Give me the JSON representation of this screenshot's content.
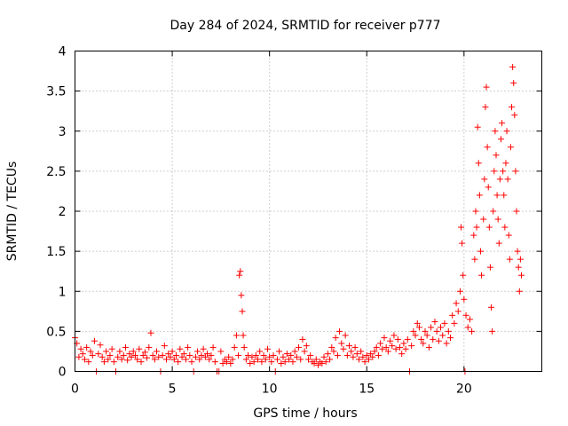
{
  "chart_data": {
    "type": "scatter",
    "title": "Day 284 of 2024, SRMTID for receiver p777",
    "xlabel": "GPS time / hours",
    "ylabel": "SRMTID / TECUs",
    "xlim": [
      0,
      24
    ],
    "ylim": [
      0,
      4
    ],
    "xticks": [
      0,
      5,
      10,
      15,
      20
    ],
    "yticks": [
      0,
      0.5,
      1,
      1.5,
      2,
      2.5,
      3,
      3.5,
      4
    ],
    "xtick_labels": [
      "0",
      "5",
      "10",
      "15",
      "20"
    ],
    "ytick_labels": [
      "0",
      "0.5",
      "1",
      "1.5",
      "2",
      "2.5",
      "3",
      "3.5",
      "4"
    ],
    "grid": true,
    "marker": "+",
    "color": "#ff0000",
    "series": [
      {
        "name": "p777",
        "points": [
          [
            0.0,
            0.42
          ],
          [
            0.1,
            0.35
          ],
          [
            0.2,
            0.18
          ],
          [
            0.3,
            0.28
          ],
          [
            0.4,
            0.22
          ],
          [
            0.5,
            0.15
          ],
          [
            0.6,
            0.3
          ],
          [
            0.7,
            0.12
          ],
          [
            0.8,
            0.25
          ],
          [
            0.9,
            0.2
          ],
          [
            1.0,
            0.38
          ],
          [
            1.1,
            0.0
          ],
          [
            1.2,
            0.22
          ],
          [
            1.3,
            0.33
          ],
          [
            1.4,
            0.18
          ],
          [
            1.5,
            0.12
          ],
          [
            1.6,
            0.25
          ],
          [
            1.7,
            0.15
          ],
          [
            1.8,
            0.2
          ],
          [
            1.9,
            0.28
          ],
          [
            2.0,
            0.12
          ],
          [
            2.1,
            0.0
          ],
          [
            2.2,
            0.18
          ],
          [
            2.3,
            0.25
          ],
          [
            2.4,
            0.15
          ],
          [
            2.5,
            0.2
          ],
          [
            2.6,
            0.3
          ],
          [
            2.7,
            0.14
          ],
          [
            2.8,
            0.22
          ],
          [
            2.9,
            0.18
          ],
          [
            3.0,
            0.25
          ],
          [
            3.1,
            0.2
          ],
          [
            3.2,
            0.15
          ],
          [
            3.3,
            0.28
          ],
          [
            3.4,
            0.12
          ],
          [
            3.5,
            0.2
          ],
          [
            3.6,
            0.24
          ],
          [
            3.7,
            0.17
          ],
          [
            3.8,
            0.3
          ],
          [
            3.9,
            0.48
          ],
          [
            4.0,
            0.2
          ],
          [
            4.1,
            0.15
          ],
          [
            4.2,
            0.25
          ],
          [
            4.3,
            0.18
          ],
          [
            4.4,
            0.0
          ],
          [
            4.5,
            0.2
          ],
          [
            4.6,
            0.32
          ],
          [
            4.7,
            0.15
          ],
          [
            4.8,
            0.22
          ],
          [
            4.9,
            0.18
          ],
          [
            5.0,
            0.25
          ],
          [
            5.1,
            0.15
          ],
          [
            5.2,
            0.2
          ],
          [
            5.3,
            0.12
          ],
          [
            5.4,
            0.28
          ],
          [
            5.5,
            0.18
          ],
          [
            5.6,
            0.22
          ],
          [
            5.7,
            0.15
          ],
          [
            5.8,
            0.3
          ],
          [
            5.9,
            0.2
          ],
          [
            6.0,
            0.12
          ],
          [
            6.1,
            0.0
          ],
          [
            6.2,
            0.18
          ],
          [
            6.3,
            0.25
          ],
          [
            6.4,
            0.15
          ],
          [
            6.5,
            0.2
          ],
          [
            6.6,
            0.28
          ],
          [
            6.7,
            0.18
          ],
          [
            6.8,
            0.22
          ],
          [
            6.9,
            0.15
          ],
          [
            7.0,
            0.2
          ],
          [
            7.1,
            0.3
          ],
          [
            7.2,
            0.12
          ],
          [
            7.3,
            0.0
          ],
          [
            7.4,
            0.0
          ],
          [
            7.5,
            0.25
          ],
          [
            7.6,
            0.1
          ],
          [
            7.7,
            0.15
          ],
          [
            7.8,
            0.12
          ],
          [
            7.9,
            0.18
          ],
          [
            8.0,
            0.1
          ],
          [
            8.1,
            0.15
          ],
          [
            8.2,
            0.3
          ],
          [
            8.3,
            0.45
          ],
          [
            8.4,
            0.2
          ],
          [
            8.45,
            1.2
          ],
          [
            8.5,
            1.25
          ],
          [
            8.55,
            0.95
          ],
          [
            8.6,
            0.75
          ],
          [
            8.65,
            0.45
          ],
          [
            8.7,
            0.3
          ],
          [
            8.8,
            0.15
          ],
          [
            8.9,
            0.2
          ],
          [
            9.0,
            0.1
          ],
          [
            9.1,
            0.18
          ],
          [
            9.2,
            0.12
          ],
          [
            9.3,
            0.2
          ],
          [
            9.4,
            0.15
          ],
          [
            9.5,
            0.25
          ],
          [
            9.6,
            0.12
          ],
          [
            9.7,
            0.2
          ],
          [
            9.8,
            0.15
          ],
          [
            9.9,
            0.28
          ],
          [
            10.0,
            0.18
          ],
          [
            10.1,
            0.12
          ],
          [
            10.2,
            0.2
          ],
          [
            10.3,
            0.0
          ],
          [
            10.4,
            0.15
          ],
          [
            10.5,
            0.25
          ],
          [
            10.6,
            0.1
          ],
          [
            10.7,
            0.18
          ],
          [
            10.8,
            0.12
          ],
          [
            10.9,
            0.22
          ],
          [
            11.0,
            0.15
          ],
          [
            11.1,
            0.2
          ],
          [
            11.2,
            0.12
          ],
          [
            11.3,
            0.25
          ],
          [
            11.4,
            0.18
          ],
          [
            11.5,
            0.3
          ],
          [
            11.6,
            0.15
          ],
          [
            11.7,
            0.4
          ],
          [
            11.8,
            0.25
          ],
          [
            11.9,
            0.32
          ],
          [
            12.0,
            0.15
          ],
          [
            12.1,
            0.2
          ],
          [
            12.2,
            0.12
          ],
          [
            12.3,
            0.1
          ],
          [
            12.4,
            0.15
          ],
          [
            12.5,
            0.08
          ],
          [
            12.6,
            0.12
          ],
          [
            12.7,
            0.1
          ],
          [
            12.8,
            0.18
          ],
          [
            12.9,
            0.12
          ],
          [
            13.0,
            0.22
          ],
          [
            13.1,
            0.15
          ],
          [
            13.2,
            0.3
          ],
          [
            13.3,
            0.25
          ],
          [
            13.4,
            0.42
          ],
          [
            13.5,
            0.2
          ],
          [
            13.6,
            0.5
          ],
          [
            13.7,
            0.35
          ],
          [
            13.8,
            0.28
          ],
          [
            13.9,
            0.45
          ],
          [
            14.0,
            0.2
          ],
          [
            14.1,
            0.32
          ],
          [
            14.2,
            0.25
          ],
          [
            14.3,
            0.18
          ],
          [
            14.4,
            0.3
          ],
          [
            14.5,
            0.22
          ],
          [
            14.6,
            0.15
          ],
          [
            14.7,
            0.25
          ],
          [
            14.8,
            0.18
          ],
          [
            14.9,
            0.12
          ],
          [
            15.0,
            0.2
          ],
          [
            15.1,
            0.15
          ],
          [
            15.2,
            0.22
          ],
          [
            15.3,
            0.18
          ],
          [
            15.4,
            0.25
          ],
          [
            15.5,
            0.3
          ],
          [
            15.6,
            0.2
          ],
          [
            15.7,
            0.35
          ],
          [
            15.8,
            0.28
          ],
          [
            15.9,
            0.42
          ],
          [
            16.0,
            0.3
          ],
          [
            16.1,
            0.25
          ],
          [
            16.2,
            0.38
          ],
          [
            16.3,
            0.32
          ],
          [
            16.4,
            0.45
          ],
          [
            16.5,
            0.28
          ],
          [
            16.6,
            0.4
          ],
          [
            16.7,
            0.3
          ],
          [
            16.8,
            0.22
          ],
          [
            16.9,
            0.35
          ],
          [
            17.0,
            0.28
          ],
          [
            17.1,
            0.4
          ],
          [
            17.2,
            0.0
          ],
          [
            17.3,
            0.32
          ],
          [
            17.4,
            0.5
          ],
          [
            17.5,
            0.45
          ],
          [
            17.6,
            0.6
          ],
          [
            17.7,
            0.55
          ],
          [
            17.8,
            0.4
          ],
          [
            17.9,
            0.35
          ],
          [
            18.0,
            0.5
          ],
          [
            18.1,
            0.45
          ],
          [
            18.2,
            0.3
          ],
          [
            18.3,
            0.55
          ],
          [
            18.4,
            0.4
          ],
          [
            18.5,
            0.62
          ],
          [
            18.6,
            0.5
          ],
          [
            18.7,
            0.38
          ],
          [
            18.8,
            0.55
          ],
          [
            18.9,
            0.45
          ],
          [
            19.0,
            0.6
          ],
          [
            19.1,
            0.35
          ],
          [
            19.2,
            0.5
          ],
          [
            19.3,
            0.42
          ],
          [
            19.4,
            0.7
          ],
          [
            19.5,
            0.6
          ],
          [
            19.6,
            0.85
          ],
          [
            19.7,
            0.75
          ],
          [
            19.8,
            1.0
          ],
          [
            19.85,
            1.8
          ],
          [
            19.9,
            1.6
          ],
          [
            19.95,
            1.2
          ],
          [
            20.0,
            0.9
          ],
          [
            20.05,
            0.0
          ],
          [
            20.1,
            0.7
          ],
          [
            20.2,
            0.55
          ],
          [
            20.3,
            0.65
          ],
          [
            20.4,
            0.5
          ],
          [
            20.5,
            1.7
          ],
          [
            20.55,
            1.4
          ],
          [
            20.6,
            2.0
          ],
          [
            20.65,
            1.8
          ],
          [
            20.7,
            3.05
          ],
          [
            20.75,
            2.6
          ],
          [
            20.8,
            2.2
          ],
          [
            20.85,
            1.5
          ],
          [
            20.9,
            1.2
          ],
          [
            21.0,
            1.9
          ],
          [
            21.05,
            2.4
          ],
          [
            21.1,
            3.3
          ],
          [
            21.15,
            3.55
          ],
          [
            21.2,
            2.8
          ],
          [
            21.25,
            2.3
          ],
          [
            21.3,
            1.8
          ],
          [
            21.35,
            1.3
          ],
          [
            21.4,
            0.8
          ],
          [
            21.45,
            0.5
          ],
          [
            21.5,
            2.0
          ],
          [
            21.55,
            2.5
          ],
          [
            21.6,
            3.0
          ],
          [
            21.65,
            2.7
          ],
          [
            21.7,
            2.2
          ],
          [
            21.75,
            1.9
          ],
          [
            21.8,
            1.6
          ],
          [
            21.85,
            2.4
          ],
          [
            21.9,
            2.9
          ],
          [
            21.95,
            3.1
          ],
          [
            22.0,
            2.5
          ],
          [
            22.05,
            2.2
          ],
          [
            22.1,
            1.8
          ],
          [
            22.15,
            2.6
          ],
          [
            22.2,
            3.0
          ],
          [
            22.25,
            2.4
          ],
          [
            22.3,
            1.7
          ],
          [
            22.35,
            1.4
          ],
          [
            22.4,
            2.8
          ],
          [
            22.45,
            3.3
          ],
          [
            22.5,
            3.8
          ],
          [
            22.55,
            3.6
          ],
          [
            22.6,
            3.2
          ],
          [
            22.65,
            2.5
          ],
          [
            22.7,
            2.0
          ],
          [
            22.75,
            1.5
          ],
          [
            22.8,
            1.3
          ],
          [
            22.85,
            1.0
          ],
          [
            22.9,
            1.4
          ],
          [
            22.95,
            1.2
          ]
        ]
      }
    ]
  }
}
